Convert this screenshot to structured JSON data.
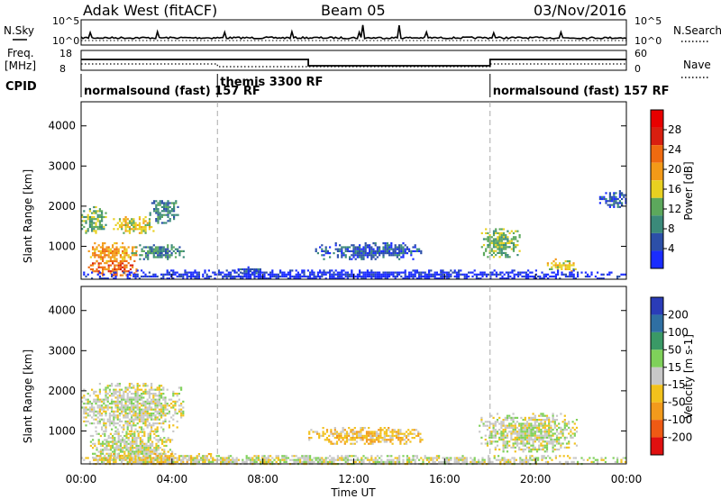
{
  "header": {
    "radar": "Adak West (fitACF)",
    "beam": "Beam 05",
    "date": "03/Nov/2016"
  },
  "noise_panel": {
    "left_label": "N.Sky",
    "right_label": "N.Search",
    "left_ticks": [
      "10^5",
      "10^0"
    ],
    "right_ticks": [
      "10^5",
      "10^0"
    ]
  },
  "freq_panel": {
    "left_label_1": "Freq.",
    "left_label_2": "[MHz]",
    "right_label": "Nave",
    "left_ticks": [
      "18",
      "8"
    ],
    "right_ticks": [
      "60",
      "0"
    ]
  },
  "cpid_panel": {
    "label": "CPID",
    "modes": [
      {
        "name": "normalsound (fast) 157 RF",
        "start_hour": 0
      },
      {
        "name": "themis 3300 RF",
        "start_hour": 6
      },
      {
        "name": "normalsound (fast) 157 RF",
        "start_hour": 18
      }
    ]
  },
  "axes": {
    "x_label": "Time UT",
    "x_ticks": [
      "00:00",
      "04:00",
      "08:00",
      "12:00",
      "16:00",
      "20:00",
      "00:00"
    ],
    "y_label": "Slant Range [km]",
    "y_ticks": [
      "1000",
      "2000",
      "3000",
      "4000"
    ],
    "y_range": [
      180,
      4600
    ],
    "x_range": [
      0,
      24
    ]
  },
  "mode_change_hours": [
    6,
    18
  ],
  "power_colorbar": {
    "label": "Power [dB]",
    "ticks": [
      "4",
      "8",
      "12",
      "16",
      "20",
      "24",
      "28"
    ],
    "colors": [
      "#1a2cff",
      "#2c4fa8",
      "#3b8a7a",
      "#5ca85c",
      "#e8d020",
      "#f39a18",
      "#ef6a10",
      "#d81f10",
      "#e80000"
    ]
  },
  "velocity_colorbar": {
    "label": "Velocity [m s-1]",
    "ticks": [
      "200",
      "100",
      "50",
      "15",
      "-15",
      "-50",
      "-100",
      "-200"
    ],
    "colors": [
      "#2a3cb8",
      "#2f6fa3",
      "#3a9966",
      "#7fd15a",
      "#c8c8c8",
      "#f2c21c",
      "#f29a1c",
      "#ef5a14",
      "#e01010"
    ]
  },
  "chart_data": {
    "type": "heatmap",
    "title": "Adak West (fitACF)",
    "subtitle": "Beam 05 03/Nov/2016",
    "xlabel": "Time UT",
    "ylabel": "Slant Range [km]",
    "xlim": [
      0,
      24
    ],
    "ylim": [
      180,
      4600
    ],
    "power_regions": [
      {
        "t0": 0.0,
        "t1": 1.1,
        "r0": 1350,
        "r1": 2000,
        "level": 3
      },
      {
        "t0": 1.4,
        "t1": 3.2,
        "r0": 1350,
        "r1": 1750,
        "level": 4
      },
      {
        "t0": 3.0,
        "t1": 4.3,
        "r0": 1600,
        "r1": 2200,
        "level": 2
      },
      {
        "t0": 0.3,
        "t1": 2.4,
        "r0": 600,
        "r1": 1100,
        "level": 5
      },
      {
        "t0": 0.3,
        "t1": 2.4,
        "r0": 300,
        "r1": 650,
        "level": 6
      },
      {
        "t0": 2.2,
        "t1": 4.5,
        "r0": 700,
        "r1": 1050,
        "level": 2
      },
      {
        "t0": 6.8,
        "t1": 8.0,
        "r0": 350,
        "r1": 500,
        "level": 1
      },
      {
        "t0": 10.3,
        "t1": 15.0,
        "r0": 700,
        "r1": 1100,
        "level": 1
      },
      {
        "t0": 17.6,
        "t1": 19.3,
        "r0": 750,
        "r1": 1450,
        "level": 3
      },
      {
        "t0": 20.5,
        "t1": 21.8,
        "r0": 400,
        "r1": 700,
        "level": 4
      },
      {
        "t0": 22.8,
        "t1": 24.0,
        "r0": 2000,
        "r1": 2400,
        "level": 1
      },
      {
        "t0": 0.0,
        "t1": 24.0,
        "r0": 180,
        "r1": 420,
        "level": 0
      }
    ],
    "velocity_regions": [
      {
        "t0": 0.0,
        "t1": 4.5,
        "r0": 1000,
        "r1": 2200,
        "level": 4
      },
      {
        "t0": 0.3,
        "t1": 4.0,
        "r0": 300,
        "r1": 1000,
        "level": 4
      },
      {
        "t0": 0.0,
        "t1": 6.5,
        "r0": 180,
        "r1": 450,
        "level": 5
      },
      {
        "t0": 10.0,
        "t1": 15.0,
        "r0": 700,
        "r1": 1100,
        "level": 5
      },
      {
        "t0": 17.5,
        "t1": 21.8,
        "r0": 500,
        "r1": 1450,
        "level": 4
      },
      {
        "t0": 0.0,
        "t1": 24.0,
        "r0": 180,
        "r1": 400,
        "level": 4
      }
    ]
  }
}
